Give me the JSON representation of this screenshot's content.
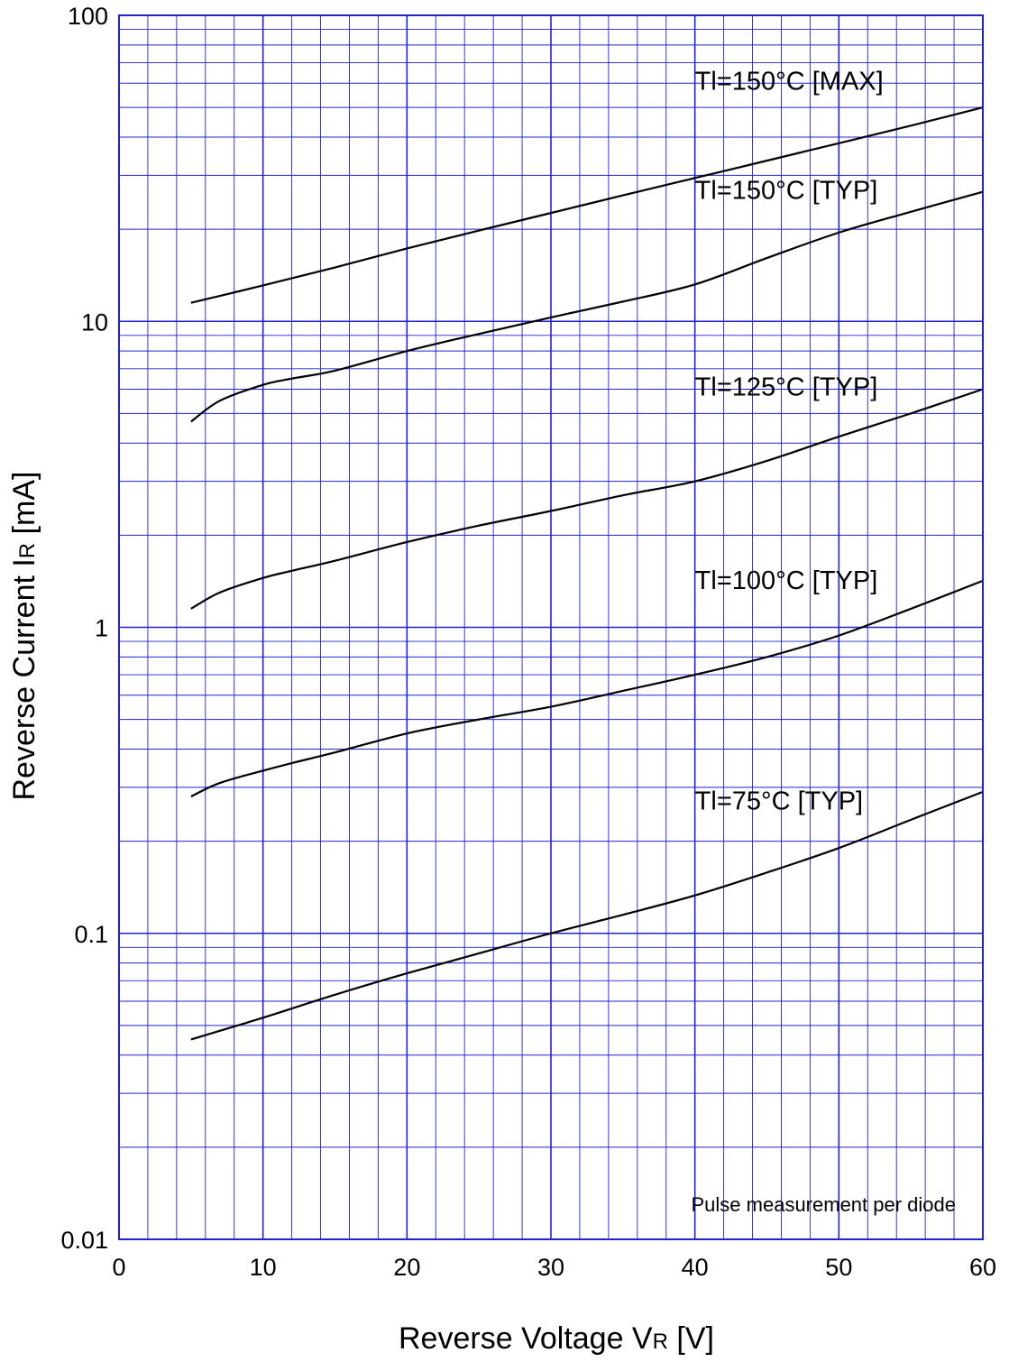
{
  "chart_data": {
    "type": "line",
    "xlabel_main": "Reverse Voltage  V",
    "xlabel_sub": "R",
    "xlabel_unit": "  [V]",
    "ylabel_main": "Reverse Current  I",
    "ylabel_sub": "R",
    "ylabel_unit": "  [mA]",
    "xlim": [
      0,
      60
    ],
    "ylim": [
      0.01,
      100
    ],
    "yscale": "log",
    "grid": true,
    "x_ticks": [
      "0",
      "10",
      "20",
      "30",
      "40",
      "50",
      "60"
    ],
    "y_ticks": [
      "0.01",
      "0.1",
      "1",
      "10",
      "100"
    ],
    "annotation": "Pulse  measurement  per  diode",
    "colors": {
      "grid": "#2222cc",
      "line": "#000000"
    },
    "series": [
      {
        "name": "Tl=150°C [MAX]",
        "points": [
          [
            5,
            11.5
          ],
          [
            10,
            13.1
          ],
          [
            15,
            15.0
          ],
          [
            20,
            17.3
          ],
          [
            25,
            19.8
          ],
          [
            30,
            22.6
          ],
          [
            35,
            25.8
          ],
          [
            40,
            29.4
          ],
          [
            45,
            33.5
          ],
          [
            50,
            38.2
          ],
          [
            55,
            43.6
          ],
          [
            60,
            50.0
          ]
        ]
      },
      {
        "name": "Tl=150°C [TYP]",
        "points": [
          [
            5,
            4.7
          ],
          [
            7,
            5.5
          ],
          [
            10,
            6.2
          ],
          [
            12,
            6.5
          ],
          [
            15,
            6.9
          ],
          [
            20,
            8.0
          ],
          [
            25,
            9.1
          ],
          [
            30,
            10.3
          ],
          [
            35,
            11.6
          ],
          [
            40,
            13.2
          ],
          [
            45,
            16.1
          ],
          [
            50,
            19.5
          ],
          [
            55,
            22.8
          ],
          [
            60,
            26.5
          ]
        ]
      },
      {
        "name": "Tl=125°C [TYP]",
        "points": [
          [
            5,
            1.15
          ],
          [
            7,
            1.3
          ],
          [
            10,
            1.45
          ],
          [
            12,
            1.53
          ],
          [
            15,
            1.65
          ],
          [
            20,
            1.9
          ],
          [
            25,
            2.15
          ],
          [
            30,
            2.4
          ],
          [
            35,
            2.7
          ],
          [
            40,
            3.0
          ],
          [
            45,
            3.5
          ],
          [
            50,
            4.2
          ],
          [
            55,
            5.0
          ],
          [
            60,
            6.0
          ]
        ]
      },
      {
        "name": "Tl=100°C [TYP]",
        "points": [
          [
            5,
            0.28
          ],
          [
            7,
            0.31
          ],
          [
            10,
            0.34
          ],
          [
            12,
            0.36
          ],
          [
            15,
            0.39
          ],
          [
            20,
            0.45
          ],
          [
            25,
            0.5
          ],
          [
            30,
            0.55
          ],
          [
            35,
            0.62
          ],
          [
            40,
            0.7
          ],
          [
            45,
            0.8
          ],
          [
            50,
            0.94
          ],
          [
            55,
            1.15
          ],
          [
            60,
            1.42
          ]
        ]
      },
      {
        "name": "Tl=75°C [TYP]",
        "points": [
          [
            5,
            0.045
          ],
          [
            10,
            0.053
          ],
          [
            15,
            0.063
          ],
          [
            20,
            0.074
          ],
          [
            25,
            0.086
          ],
          [
            30,
            0.1
          ],
          [
            35,
            0.115
          ],
          [
            40,
            0.133
          ],
          [
            45,
            0.158
          ],
          [
            50,
            0.19
          ],
          [
            55,
            0.235
          ],
          [
            60,
            0.29
          ]
        ]
      }
    ]
  }
}
